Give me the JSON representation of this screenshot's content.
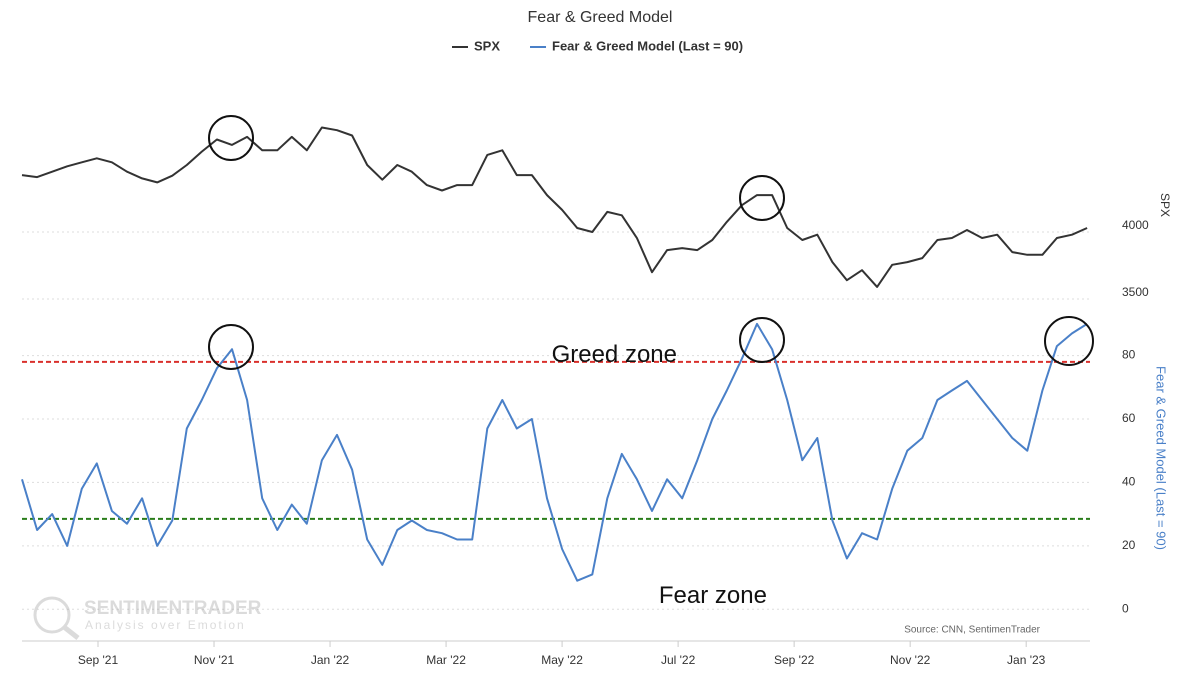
{
  "chart_data": {
    "type": "line",
    "title": "Fear & Greed Model",
    "ylabel": "SPX",
    "y2label": "Fear & Greed Model (Last = 90)",
    "source": "Source: CNN, SentimenTrader",
    "watermark": {
      "name": "SENTIMENTRADER",
      "tagline": "Analysis over Emotion"
    },
    "annotations": [
      {
        "text": "Greed zone",
        "x": 8.9,
        "y": 80
      },
      {
        "text": "Fear zone",
        "x": 10.6,
        "y": 4
      }
    ],
    "reference_lines": [
      {
        "value": 78,
        "color": "#d9302c"
      },
      {
        "value": 28.5,
        "color": "#2a7d1a"
      }
    ],
    "xlim": [
      -1.31,
      17.1
    ],
    "xticks": [
      {
        "value": 0,
        "label": "Sep '21"
      },
      {
        "value": 2,
        "label": "Nov '21"
      },
      {
        "value": 4,
        "label": "Jan '22"
      },
      {
        "value": 6,
        "label": "Mar '22"
      },
      {
        "value": 8,
        "label": "May '22"
      },
      {
        "value": 10,
        "label": "Jul '22"
      },
      {
        "value": 12,
        "label": "Sep '22"
      },
      {
        "value": 14,
        "label": "Nov '22"
      },
      {
        "value": 16,
        "label": "Jan '23"
      }
    ],
    "ylim": [
      3500,
      5000
    ],
    "yticks": [
      3500,
      4000
    ],
    "y2lim": [
      -10,
      95
    ],
    "y2ticks": [
      0,
      20,
      40,
      60,
      80
    ],
    "grid": true,
    "x": [
      -1.31,
      -1.05,
      -0.79,
      -0.53,
      -0.28,
      -0.02,
      0.24,
      0.5,
      0.76,
      1.02,
      1.28,
      1.53,
      1.79,
      2.05,
      2.31,
      2.57,
      2.83,
      3.09,
      3.34,
      3.6,
      3.86,
      4.12,
      4.38,
      4.64,
      4.9,
      5.16,
      5.41,
      5.67,
      5.93,
      6.19,
      6.45,
      6.71,
      6.97,
      7.22,
      7.48,
      7.74,
      8.0,
      8.26,
      8.52,
      8.78,
      9.03,
      9.29,
      9.55,
      9.81,
      10.07,
      10.33,
      10.59,
      10.84,
      11.1,
      11.36,
      11.62,
      11.88,
      12.14,
      12.4,
      12.66,
      12.91,
      13.17,
      13.43,
      13.69,
      13.95,
      14.21,
      14.47,
      14.72,
      14.98,
      15.24,
      15.5,
      15.76,
      16.02,
      16.28,
      16.53,
      16.79,
      17.05
    ],
    "series": [
      {
        "name": "SPX",
        "color": "#333333",
        "axis": "y",
        "values": [
          4425,
          4410,
          4450,
          4490,
          4520,
          4550,
          4520,
          4450,
          4400,
          4370,
          4420,
          4500,
          4600,
          4690,
          4650,
          4710,
          4610,
          4610,
          4710,
          4610,
          4780,
          4760,
          4720,
          4500,
          4390,
          4500,
          4450,
          4350,
          4310,
          4350,
          4350,
          4575,
          4610,
          4425,
          4425,
          4275,
          4165,
          4030,
          4000,
          4150,
          4125,
          3955,
          3700,
          3865,
          3880,
          3865,
          3940,
          4075,
          4200,
          4275,
          4275,
          4030,
          3940,
          3980,
          3775,
          3640,
          3715,
          3590,
          3755,
          3775,
          3805,
          3940,
          3955,
          4015,
          3955,
          3980,
          3850,
          3830,
          3830,
          3955,
          3980,
          4030
        ]
      },
      {
        "name": "Fear & Greed Model (Last = 90)",
        "color": "#4a80c8",
        "axis": "y2",
        "values": [
          41,
          25,
          30,
          20,
          38,
          46,
          31,
          27,
          35,
          20,
          28,
          57,
          66,
          76,
          82,
          66,
          35,
          25,
          33,
          27,
          47,
          55,
          44,
          22,
          14,
          25,
          28,
          25,
          24,
          22,
          22,
          57,
          66,
          57,
          60,
          35,
          19,
          9,
          11,
          35,
          49,
          41,
          31,
          41,
          35,
          47,
          60,
          69,
          79,
          90,
          82,
          66,
          47,
          54,
          28,
          16,
          24,
          22,
          38,
          50,
          54,
          66,
          69,
          72,
          66,
          60,
          54,
          50,
          69,
          83,
          87,
          90
        ]
      }
    ]
  }
}
